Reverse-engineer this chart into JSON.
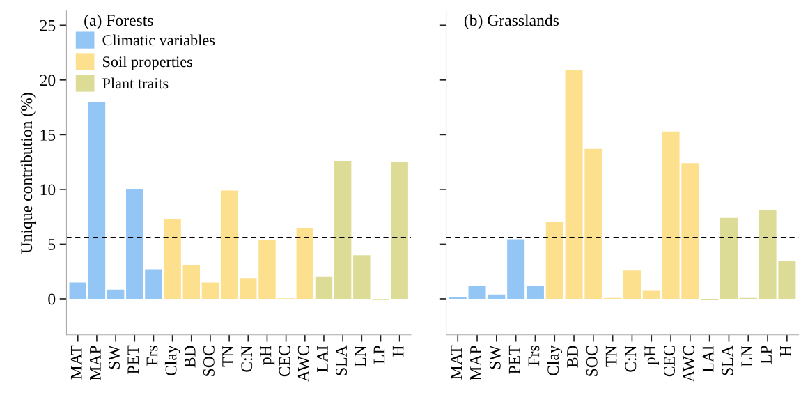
{
  "chart_data": [
    {
      "type": "bar",
      "title": "(a) Forests",
      "ylabel": "Unique contribution (%)",
      "categories": [
        "MAT",
        "MAP",
        "SW",
        "PET",
        "Frs",
        "Clay",
        "BD",
        "SOC",
        "TN",
        "C:N",
        "pH",
        "CEC",
        "AWC",
        "LAI",
        "SLA",
        "LN",
        "LP",
        "H"
      ],
      "series": [
        {
          "name": "Climatic variables",
          "color": "#94c6f5",
          "values": [
            1.5,
            18.0,
            0.85,
            10.0,
            2.7,
            null,
            null,
            null,
            null,
            null,
            null,
            null,
            null,
            null,
            null,
            null,
            null,
            null
          ]
        },
        {
          "name": "Soil properties",
          "color": "#fde08d",
          "values": [
            null,
            null,
            null,
            null,
            null,
            7.3,
            3.1,
            1.5,
            9.9,
            1.9,
            5.4,
            0.05,
            6.5,
            null,
            null,
            null,
            null,
            null
          ]
        },
        {
          "name": "Plant traits",
          "color": "#dcdc96",
          "values": [
            null,
            null,
            null,
            null,
            null,
            null,
            null,
            null,
            null,
            null,
            null,
            null,
            null,
            2.05,
            12.6,
            4.0,
            -0.05,
            12.5
          ]
        }
      ],
      "ylim": [
        -3.3,
        26.3
      ],
      "yticks": [
        0,
        5,
        10,
        15,
        20,
        25
      ],
      "ref_lines": [
        {
          "axis": "y",
          "value": 5.6,
          "line_style": "dashed",
          "color": "#000000"
        }
      ],
      "legend": "top left",
      "grid": false
    },
    {
      "type": "bar",
      "title": "(b) Grasslands",
      "categories": [
        "MAT",
        "MAP",
        "SW",
        "PET",
        "Frs",
        "Clay",
        "BD",
        "SOC",
        "TN",
        "C:N",
        "pH",
        "CEC",
        "AWC",
        "LAI",
        "SLA",
        "LN",
        "LP",
        "H"
      ],
      "series": [
        {
          "color": "#94c6f5",
          "values": [
            0.14,
            1.18,
            0.39,
            5.44,
            1.15,
            null,
            null,
            null,
            null,
            null,
            null,
            null,
            null,
            null,
            null,
            null,
            null,
            null
          ]
        },
        {
          "color": "#fde08d",
          "values": [
            null,
            null,
            null,
            null,
            null,
            7.0,
            20.9,
            13.7,
            0.08,
            2.6,
            0.8,
            15.3,
            12.4,
            null,
            null,
            null,
            null,
            null
          ]
        },
        {
          "color": "#dcdc96",
          "values": [
            null,
            null,
            null,
            null,
            null,
            null,
            null,
            null,
            null,
            null,
            null,
            null,
            null,
            -0.1,
            7.4,
            0.08,
            8.1,
            3.5
          ]
        }
      ],
      "ylim": [
        -3.3,
        26.3
      ],
      "yticks": [
        0,
        5,
        10,
        15,
        20,
        25
      ],
      "ref_lines": [
        {
          "axis": "y",
          "value": 5.6,
          "line_style": "dashed",
          "color": "#000000"
        }
      ],
      "tick_labels": "x",
      "grid": false
    }
  ]
}
